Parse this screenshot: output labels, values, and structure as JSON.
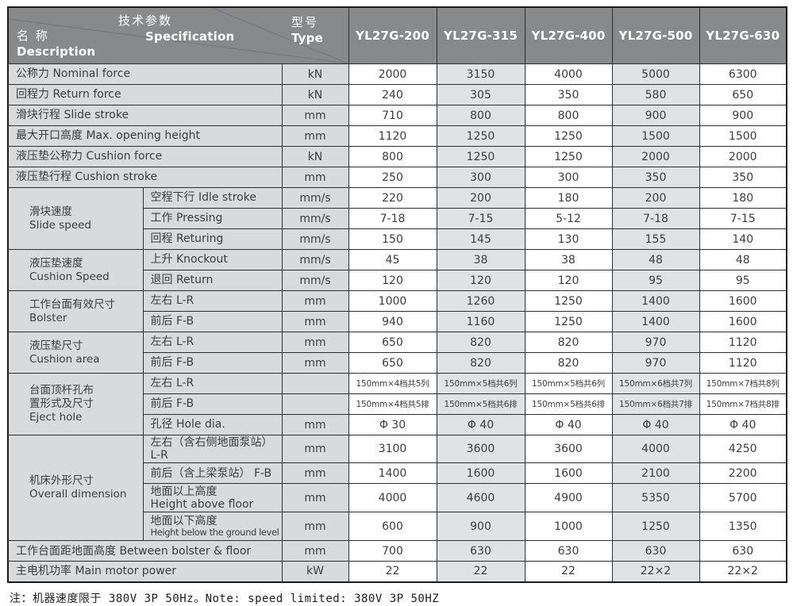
{
  "header": {
    "spec_cn": "技术参数",
    "spec_en": "Specification",
    "desc_cn": "名 称",
    "desc_en": "Description",
    "type_cn": "型号",
    "type_en": "Type",
    "models": [
      "YL27G-200",
      "YL27G-315",
      "YL27G-400",
      "YL27G-500",
      "YL27G-630"
    ]
  },
  "rows": [
    {
      "label": "公称力  Nominal force",
      "unit": "kN",
      "values": [
        "2000",
        "3150",
        "4000",
        "5000",
        "6300"
      ]
    },
    {
      "label": "回程力  Return force",
      "unit": "kN",
      "values": [
        "240",
        "305",
        "350",
        "580",
        "650"
      ]
    },
    {
      "label": "滑块行程  Slide stroke",
      "unit": "mm",
      "values": [
        "710",
        "800",
        "800",
        "900",
        "900"
      ]
    },
    {
      "label": "最大开口高度  Max. opening height",
      "unit": "mm",
      "values": [
        "1120",
        "1250",
        "1250",
        "1500",
        "1500"
      ]
    },
    {
      "label": "液压垫公称力  Cushion force",
      "unit": "kN",
      "values": [
        "800",
        "1250",
        "1250",
        "2000",
        "2000"
      ]
    },
    {
      "label": "液压垫行程  Cushion stroke",
      "unit": "mm",
      "values": [
        "250",
        "300",
        "300",
        "350",
        "350"
      ]
    },
    {
      "group": {
        "lines": [
          "滑块速度",
          "Slide speed"
        ],
        "rows": 3
      },
      "label": "空程下行 Idle stroke",
      "unit": "mm/s",
      "values": [
        "220",
        "200",
        "180",
        "200",
        "180"
      ]
    },
    {
      "label": "工作 Pressing",
      "unit": "mm/s",
      "values": [
        "7-18",
        "7-15",
        "5-12",
        "7-18",
        "7-15"
      ]
    },
    {
      "label": "回程 Returing",
      "unit": "mm/s",
      "values": [
        "150",
        "145",
        "130",
        "155",
        "140"
      ]
    },
    {
      "group": {
        "lines": [
          "液压垫速度",
          "Cushion Speed"
        ],
        "rows": 2
      },
      "label": "上升 Knockout",
      "unit": "mm/s",
      "values": [
        "45",
        "38",
        "38",
        "48",
        "48"
      ]
    },
    {
      "label": "退回 Return",
      "unit": "mm/s",
      "values": [
        "120",
        "120",
        "120",
        "95",
        "95"
      ]
    },
    {
      "group": {
        "lines": [
          "工作台面有效尺寸",
          "Bolster"
        ],
        "rows": 2
      },
      "label": "左右 L-R",
      "unit": "mm",
      "values": [
        "1000",
        "1260",
        "1250",
        "1400",
        "1600"
      ]
    },
    {
      "label": "前后 F-B",
      "unit": "mm",
      "values": [
        "940",
        "1160",
        "1250",
        "1400",
        "1600"
      ]
    },
    {
      "group": {
        "lines": [
          "液压垫尺寸",
          "Cushion area"
        ],
        "rows": 2
      },
      "label": "左右 L-R",
      "unit": "mm",
      "values": [
        "650",
        "820",
        "820",
        "970",
        "1120"
      ]
    },
    {
      "label": "前后 F-B",
      "unit": "mm",
      "values": [
        "650",
        "820",
        "820",
        "970",
        "1120"
      ]
    },
    {
      "group": {
        "lines": [
          "台面顶杆孔布",
          "置形式及尺寸",
          "Eject hole"
        ],
        "rows": 3
      },
      "label": "左右 L-R",
      "unit": "",
      "values": [
        "150mm×4档共5列",
        "150mm×5档共6列",
        "150mm×5档共6列",
        "150mm×6档共7列",
        "150mm×7档共8列"
      ],
      "small": true
    },
    {
      "label": "前后 F-B",
      "unit": "",
      "values": [
        "150mm×4档共5排",
        "150mm×5档共6排",
        "150mm×5档共6排",
        "150mm×6档共7排",
        "150mm×7档共8排"
      ],
      "small": true
    },
    {
      "label": "孔径 Hole dia.",
      "unit": "mm",
      "values": [
        "Φ 30",
        "Φ 40",
        "Φ 40",
        "Φ 40",
        "Φ 40"
      ]
    },
    {
      "group": {
        "lines": [
          "机床外形尺寸",
          "Overall dimension"
        ],
        "rows": 4
      },
      "label": "左右（含右侧地面泵站） L-R",
      "unit": "mm",
      "values": [
        "3100",
        "3600",
        "3600",
        "4000",
        "4250"
      ]
    },
    {
      "label": "前后（含上梁泵站） F-B",
      "unit": "mm",
      "values": [
        "1400",
        "1600",
        "1600",
        "2100",
        "2200"
      ]
    },
    {
      "label": [
        "地面以上高度",
        "Height above floor"
      ],
      "unit": "mm",
      "values": [
        "4000",
        "4600",
        "4900",
        "5350",
        "5700"
      ],
      "tall": true
    },
    {
      "label": [
        "地面以下高度",
        "Height below the ground level"
      ],
      "unit": "mm",
      "values": [
        "600",
        "900",
        "1000",
        "1250",
        "1350"
      ],
      "tall": true,
      "condense": true
    },
    {
      "label": "工作台面距地面高度 Between bolster & floor",
      "unit": "mm",
      "values": [
        "700",
        "630",
        "630",
        "630",
        "630"
      ]
    },
    {
      "label": "主电机功率 Main motor power",
      "unit": "kW",
      "values": [
        "22",
        "22",
        "22",
        "22×2",
        "22×2"
      ]
    }
  ],
  "note": "注：机器速度限于 380V 3P 50Hz。Note: speed limited: 380V 3P 50HZ",
  "colors": {
    "header_bg": "#88898b",
    "header_text": "#ffffff",
    "label_bg": "#d9dadb",
    "shade_bg": "#e1e2e4",
    "border": "#2e2e30",
    "border_strong": "#1a1a1a",
    "text": "#3d3d3f",
    "diagonal_line": "#75767a"
  }
}
